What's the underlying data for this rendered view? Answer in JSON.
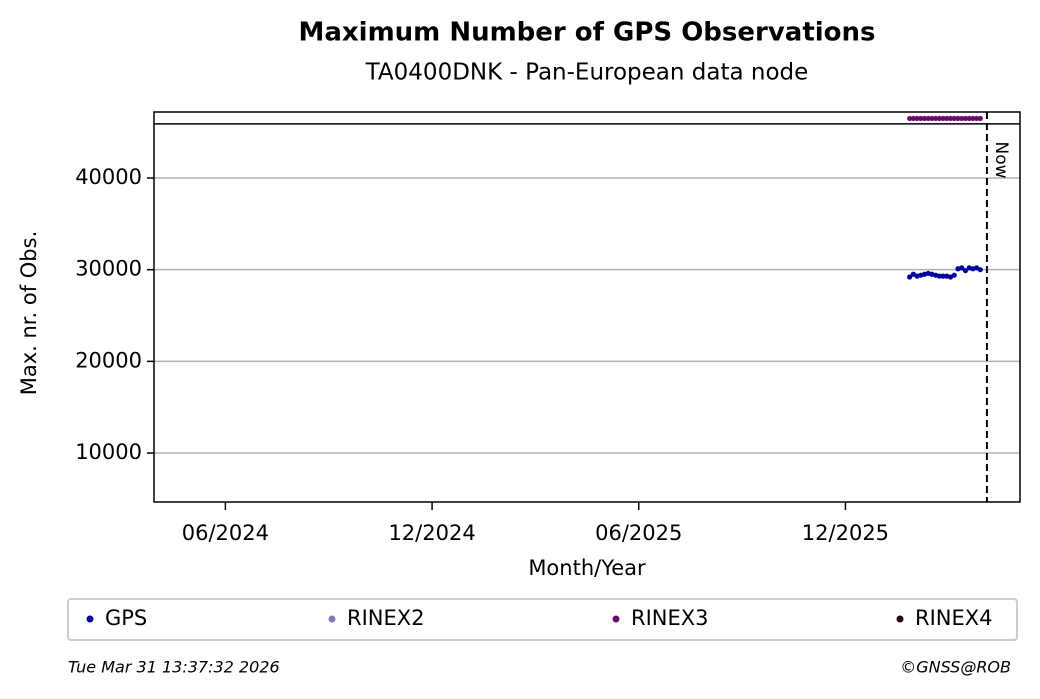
{
  "chart_data": {
    "type": "scatter",
    "title": "Maximum Number of GPS Observations",
    "subtitle": "TA0400DNK - Pan-European data node",
    "x_label": "Month/Year",
    "y_label": "Max. nr. of Obs.",
    "x": [
      2026.072,
      2026.081,
      2026.09,
      2026.099,
      2026.108,
      2026.117,
      2026.126,
      2026.135,
      2026.144,
      2026.153,
      2026.162,
      2026.171,
      2026.18,
      2026.189,
      2026.198,
      2026.207,
      2026.216,
      2026.225,
      2026.234,
      2026.243
    ],
    "series": [
      {
        "name": "GPS",
        "color": "#0000a0",
        "values": [
          29200,
          29500,
          29300,
          29400,
          29500,
          29600,
          29500,
          29400,
          29300,
          29300,
          29300,
          29200,
          29400,
          30100,
          30200,
          29900,
          30200,
          30100,
          30200,
          30000
        ]
      },
      {
        "name": "RINEX2",
        "color": "#7b7bb5",
        "values": [
          null,
          null,
          null,
          null,
          null,
          null,
          null,
          null,
          null,
          null,
          null,
          null,
          null,
          null,
          null,
          null,
          null,
          null,
          null,
          null
        ]
      },
      {
        "name": "RINEX3",
        "color": "#6a0a6a",
        "values": [
          46500,
          46500,
          46500,
          46500,
          46500,
          46500,
          46500,
          46500,
          46500,
          46500,
          46500,
          46500,
          46500,
          46500,
          46500,
          46500,
          46500,
          46500,
          46500,
          46500
        ]
      },
      {
        "name": "RINEX4",
        "color": "#2a0020",
        "values": [
          null,
          null,
          null,
          null,
          null,
          null,
          null,
          null,
          null,
          null,
          null,
          null,
          null,
          null,
          null,
          null,
          null,
          null,
          null,
          null
        ]
      }
    ],
    "xlim": [
      2024.244,
      2026.339
    ],
    "ylim": [
      4660,
      47200
    ],
    "xticks": [
      {
        "value": 2024.4167,
        "label": "06/2024"
      },
      {
        "value": 2024.9167,
        "label": "12/2024"
      },
      {
        "value": 2025.4167,
        "label": "06/2025"
      },
      {
        "value": 2025.9167,
        "label": "12/2025"
      }
    ],
    "yticks": [
      10000,
      20000,
      30000,
      40000
    ],
    "hline": 45900,
    "grid": true,
    "now": {
      "x": 2026.259,
      "label": "Now"
    },
    "legend": "bottom",
    "footer_left": "Tue Mar 31 13:37:32 2026",
    "footer_right": "©GNSS@ROB"
  }
}
